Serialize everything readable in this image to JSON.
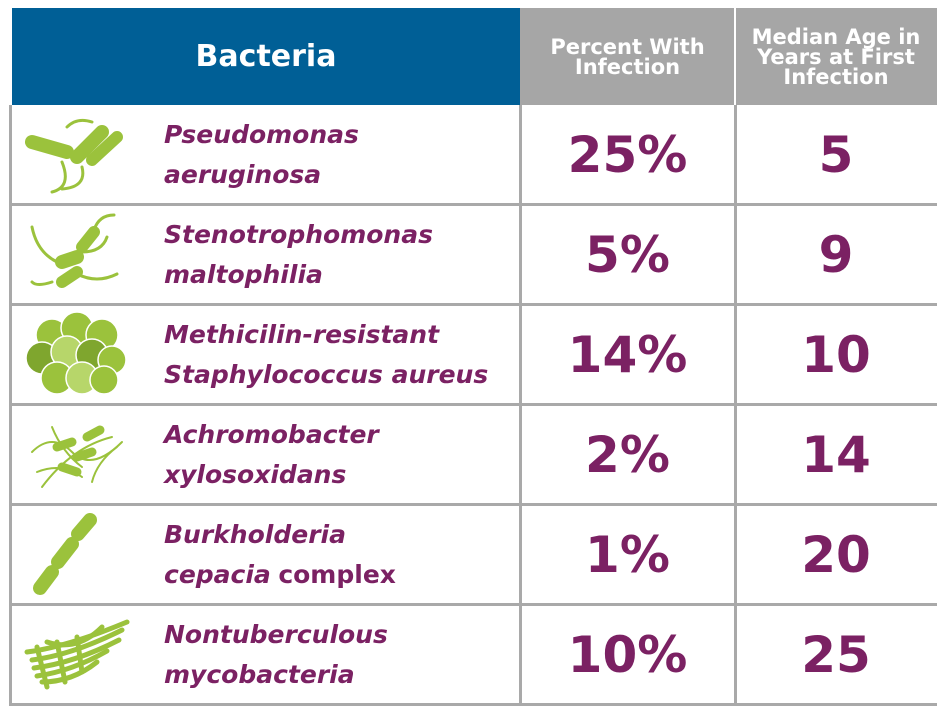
{
  "table": {
    "header": [
      "Bacteria",
      "Percent With Infection",
      "Median Age in Years at First Infection"
    ],
    "rows": [
      {
        "name": [
          [
            {
              "text": "Pseudomonas",
              "italic": true
            }
          ],
          [
            {
              "text": "aeruginosa",
              "italic": true
            }
          ]
        ],
        "percent": "25%",
        "age": "5"
      },
      {
        "name": [
          [
            {
              "text": "Stenotrophomonas",
              "italic": true
            }
          ],
          [
            {
              "text": "maltophilia",
              "italic": true
            }
          ]
        ],
        "percent": "5%",
        "age": "9"
      },
      {
        "name": [
          [
            {
              "text": "Methicilin-resistant",
              "italic": true
            }
          ],
          [
            {
              "text": "Staphylococcus aureus",
              "italic": true
            }
          ]
        ],
        "percent": "14%",
        "age": "10"
      },
      {
        "name": [
          [
            {
              "text": "Achromobacter",
              "italic": true
            }
          ],
          [
            {
              "text": "xylosoxidans",
              "italic": true
            }
          ]
        ],
        "percent": "2%",
        "age": "14"
      },
      {
        "name": [
          [
            {
              "text": "Burkholderia",
              "italic": true
            }
          ],
          [
            {
              "text": "cepacia",
              "italic": true
            },
            {
              "text": "complex",
              "italic": false
            }
          ]
        ],
        "percent": "1%",
        "age": "20"
      },
      {
        "name": [
          [
            {
              "text": "Nontuberculous",
              "italic": true
            }
          ],
          [
            {
              "text": "mycobacteria",
              "italic": true
            }
          ]
        ],
        "percent": "10%",
        "age": "25"
      }
    ]
  }
}
